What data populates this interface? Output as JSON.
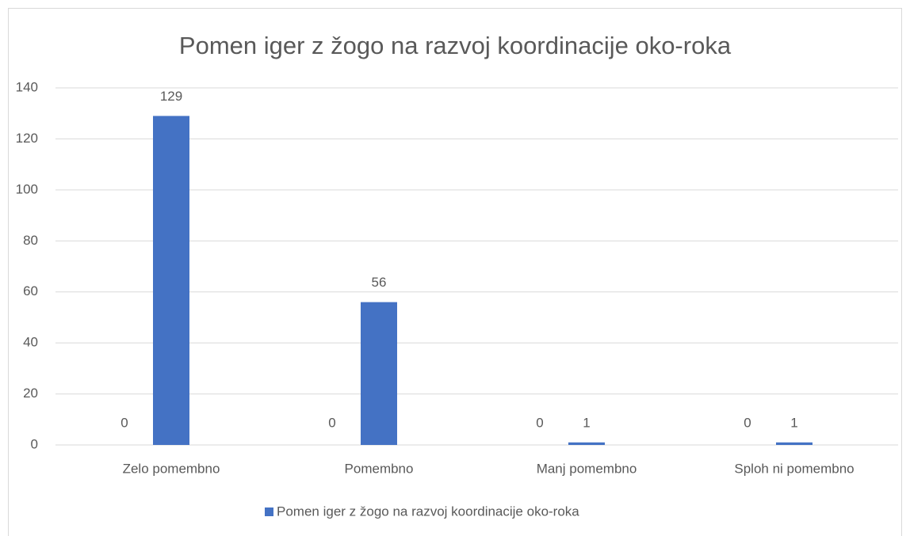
{
  "chart_data": {
    "type": "bar",
    "title": "Pomen iger z žogo na razvoj koordinacije oko-roka",
    "categories": [
      "Zelo pomembno",
      "Pomembno",
      "Manj pomembno",
      "Sploh ni pomembno"
    ],
    "series": [
      {
        "values": [
          0,
          0,
          0,
          0
        ]
      },
      {
        "name": "Pomen iger z žogo na razvoj koordinacije oko-roka",
        "color": "#4472c4",
        "values": [
          129,
          56,
          1,
          1
        ]
      }
    ],
    "ylim": [
      0,
      140
    ],
    "yticks": [
      0,
      20,
      40,
      60,
      80,
      100,
      120,
      140
    ],
    "grid": true,
    "legend": "bottom"
  }
}
